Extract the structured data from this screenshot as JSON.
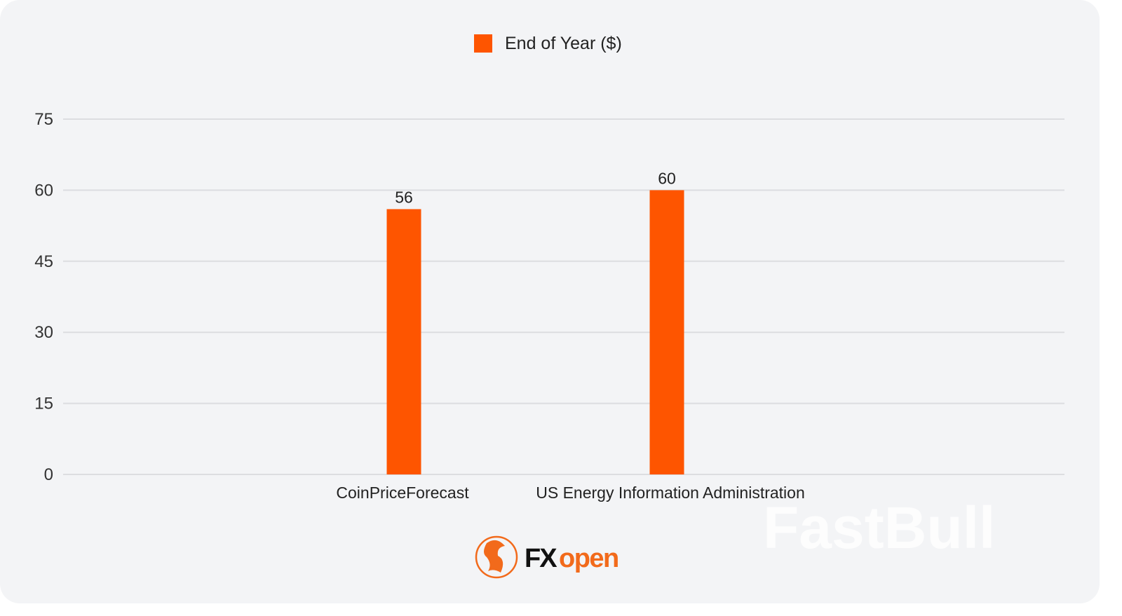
{
  "chart_data": {
    "type": "bar",
    "title": "",
    "categories": [
      "CoinPriceForecast",
      "US Energy Information Administration"
    ],
    "series": [
      {
        "name": "End of Year ($)",
        "values": [
          56,
          60
        ],
        "color": "#fe5500"
      }
    ],
    "data_labels": [
      "56",
      "60"
    ],
    "ylim": [
      0,
      75
    ],
    "yticks": [
      0,
      15,
      30,
      45,
      60,
      75
    ],
    "xlabel": "",
    "ylabel": "",
    "grid": true,
    "legend_position": "top-center"
  },
  "branding": {
    "logo_text": "FXopen",
    "watermark": "FastBull"
  },
  "colors": {
    "background": "#f3f4f6",
    "grid": "#dcdde0",
    "bar": "#fe5500"
  }
}
